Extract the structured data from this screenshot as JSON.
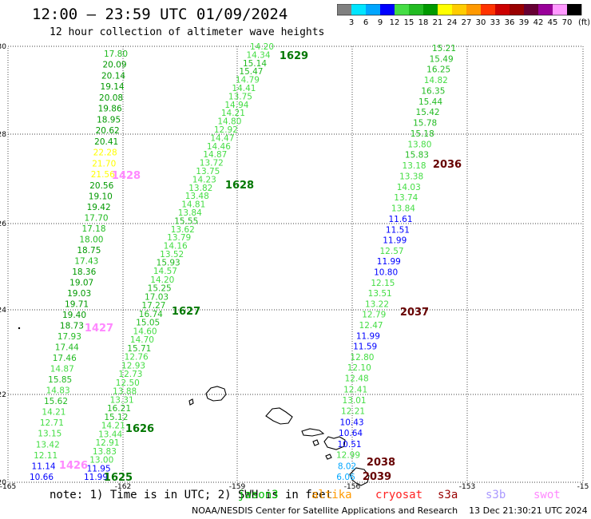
{
  "header": {
    "title": "12:00 — 23:59 UTC 01/09/2024",
    "subtitle": "12 hour collection of altimeter wave heights"
  },
  "colorbar": {
    "labels": [
      "3",
      "6",
      "9",
      "12",
      "15",
      "18",
      "21",
      "24",
      "27",
      "30",
      "33",
      "36",
      "39",
      "42",
      "45",
      "70"
    ],
    "unit": "(ft)",
    "colors": [
      "#808080",
      "#00e5ff",
      "#00a6ff",
      "#0000ff",
      "#44dd44",
      "#22bb22",
      "#009900",
      "#ffff00",
      "#ffcc00",
      "#ff9900",
      "#ff3300",
      "#cc0000",
      "#990000",
      "#660033",
      "#990099",
      "#ff99ff",
      "#000000"
    ]
  },
  "axes": {
    "lon_labels": [
      "-165",
      "-162",
      "-159",
      "-156",
      "-153",
      "-15"
    ],
    "lat_labels": [
      "30",
      "28",
      "26",
      "24",
      "22",
      "20"
    ]
  },
  "passes": [
    {
      "id": "1428",
      "color": "#ff88ff"
    },
    {
      "id": "1427",
      "color": "#ff88ff"
    },
    {
      "id": "1426",
      "color": "#ff88ff"
    },
    {
      "id": "1629",
      "color": "#007700"
    },
    {
      "id": "1628",
      "color": "#007700"
    },
    {
      "id": "1627",
      "color": "#007700"
    },
    {
      "id": "1626",
      "color": "#007700"
    },
    {
      "id": "1625",
      "color": "#007700"
    },
    {
      "id": "2036",
      "color": "#660000"
    },
    {
      "id": "2037",
      "color": "#660000"
    },
    {
      "id": "2038",
      "color": "#660000"
    },
    {
      "id": "2039",
      "color": "#660000"
    }
  ],
  "tracks": {
    "west": [
      "17.80",
      "20.09",
      "20.14",
      "19.14",
      "20.08",
      "19.86",
      "18.95",
      "20.62",
      "20.41",
      "22.28",
      "21.70",
      "21.56",
      "20.56",
      "19.10",
      "19.42",
      "17.70",
      "17.18",
      "18.00",
      "18.75",
      "17.43",
      "18.36",
      "19.07",
      "19.03",
      "19.71",
      "19.40",
      "18.73",
      "17.93",
      "17.44",
      "17.46",
      "14.87",
      "15.85",
      "14.83",
      "15.62",
      "14.21",
      "12.71",
      "13.15",
      "13.42",
      "12.11",
      "11.14",
      "10.66"
    ],
    "middle": [
      "14.20",
      "14.34",
      "15.14",
      "15.47",
      "14.79",
      "14.41",
      "13.75",
      "14.94",
      "14.21",
      "14.80",
      "12.92",
      "14.47",
      "14.46",
      "14.87",
      "13.72",
      "13.75",
      "14.23",
      "13.82",
      "13.48",
      "14.81",
      "13.84",
      "15.55",
      "13.62",
      "13.79",
      "14.16",
      "13.52",
      "15.93",
      "14.57",
      "14.20",
      "15.25",
      "17.03",
      "17.27",
      "16.74",
      "15.05",
      "14.60",
      "14.70",
      "15.71",
      "12.76",
      "12.93",
      "12.73",
      "12.50",
      "13.88",
      "13.31",
      "16.21",
      "15.12",
      "14.21",
      "13.44",
      "12.91",
      "13.83",
      "13.00",
      "11.95",
      "11.99"
    ],
    "east": [
      "15.21",
      "15.49",
      "16.25",
      "14.82",
      "16.35",
      "15.44",
      "15.42",
      "15.78",
      "15.18",
      "13.80",
      "15.83",
      "13.18",
      "13.38",
      "14.03",
      "13.74",
      "13.84",
      "11.61",
      "11.51",
      "11.99",
      "12.57",
      "11.99",
      "10.80",
      "12.15",
      "13.51",
      "13.22",
      "12.79",
      "12.47",
      "11.99",
      "11.59",
      "12.80",
      "12.10",
      "12.48",
      "12.41",
      "13.01",
      "12.21",
      "10.43",
      "10.64",
      "10.51",
      "12.99",
      "8.02",
      "6.06"
    ]
  },
  "footer": {
    "note": "note: 1) Time is in UTC; 2) SWH is in feet",
    "algorithms": [
      {
        "label": "jason3",
        "color": "#00bb00"
      },
      {
        "label": "altika",
        "color": "#ff9900"
      },
      {
        "label": "cryosat",
        "color": "#ff2222"
      },
      {
        "label": "s3a",
        "color": "#990000"
      },
      {
        "label": "s3b",
        "color": "#aa99ff"
      },
      {
        "label": "swot",
        "color": "#ff88ff"
      }
    ],
    "credit": "NOAA/NESDIS Center for Satellite Applications and Research    13 Dec 21:30:21 UTC 2024"
  }
}
